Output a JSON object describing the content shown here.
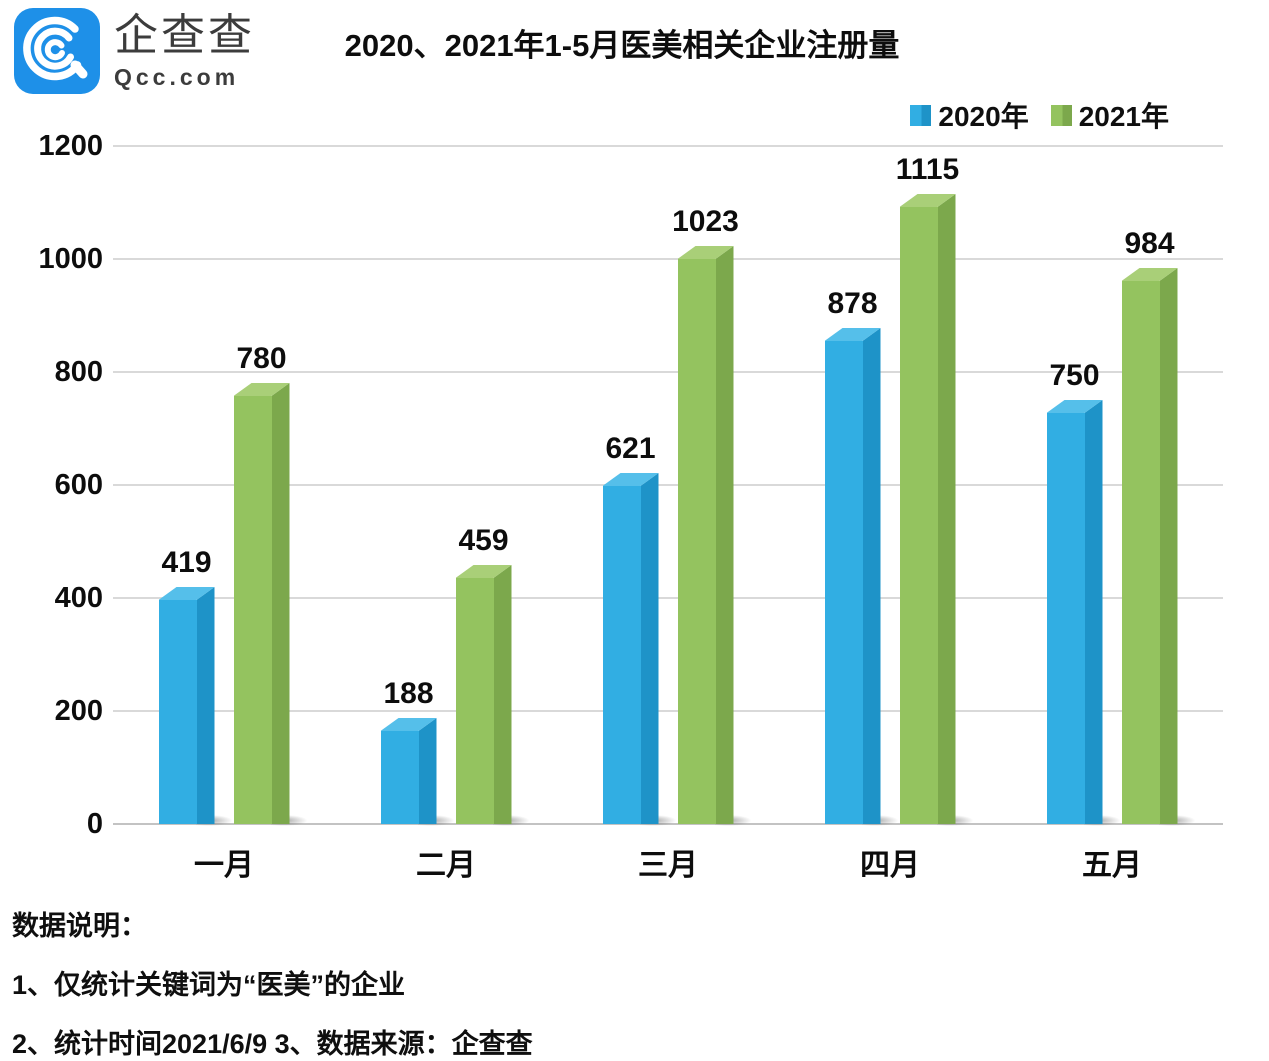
{
  "brand": {
    "name": "企查查",
    "domain": "Qcc.com",
    "logo_color": "#1E90E8"
  },
  "header": {
    "title": "2020、2021年1-5月医美相关企业注册量"
  },
  "legend": {
    "items": [
      {
        "label": "2020年"
      },
      {
        "label": "2021年"
      }
    ]
  },
  "chart_data": {
    "type": "bar",
    "title": "2020、2021年1-5月医美相关企业注册量",
    "categories": [
      "一月",
      "二月",
      "三月",
      "四月",
      "五月"
    ],
    "series": [
      {
        "name": "2020年",
        "values": [
          419,
          188,
          621,
          878,
          750
        ],
        "colors": {
          "front": "#31AEE3",
          "side": "#1E93C8",
          "top": "#55BFEA"
        }
      },
      {
        "name": "2021年",
        "values": [
          780,
          459,
          1023,
          1115,
          984
        ],
        "colors": {
          "front": "#94C35F",
          "side": "#7CA84C",
          "top": "#A9CF78"
        }
      }
    ],
    "xlabel": "",
    "ylabel": "",
    "ylim": [
      0,
      1200
    ],
    "yticks": [
      0,
      200,
      400,
      600,
      800,
      1000,
      1200
    ],
    "grid": "horizontal",
    "legend_position": "top-right",
    "bar_style": "3d"
  },
  "notes": {
    "heading": "数据说明：",
    "items": [
      "1、仅统计关键词为“医美”的企业",
      "2、统计时间2021/6/9   3、数据来源：企查查"
    ]
  }
}
